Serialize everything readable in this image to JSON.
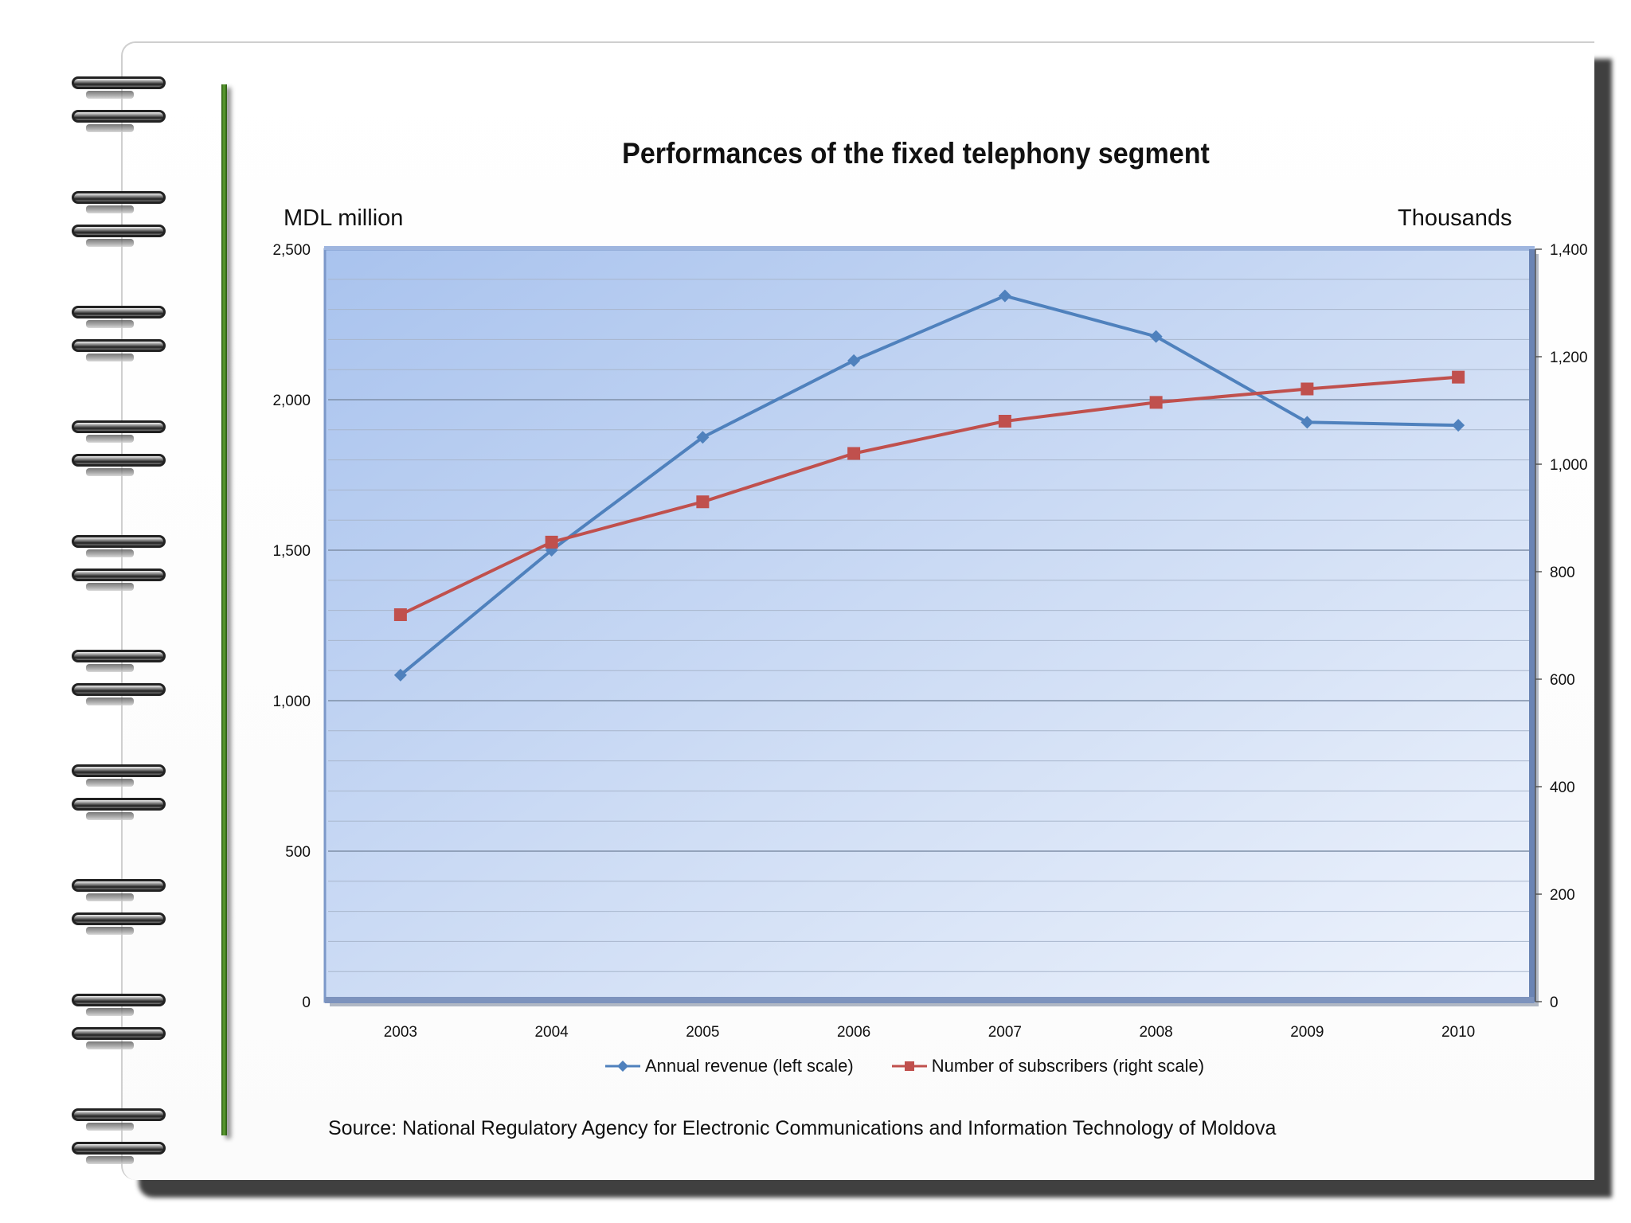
{
  "chart_data": {
    "type": "line",
    "title": "Performances of the fixed telephony segment",
    "left_axis_label": "MDL million",
    "right_axis_label": "Thousands",
    "categories": [
      "2003",
      "2004",
      "2005",
      "2006",
      "2007",
      "2008",
      "2009",
      "2010"
    ],
    "left_ylim": [
      0,
      2500
    ],
    "right_ylim": [
      0,
      1400
    ],
    "left_ticks": [
      0,
      500,
      1000,
      1500,
      2000,
      2500
    ],
    "left_tick_labels": [
      "0",
      "500",
      "1,000",
      "1,500",
      "2,000",
      "2,500"
    ],
    "right_ticks": [
      0,
      200,
      400,
      600,
      800,
      1000,
      1200,
      1400
    ],
    "right_tick_labels": [
      "0",
      "200",
      "400",
      "600",
      "800",
      "1,000",
      "1,200",
      "1,400"
    ],
    "series": [
      {
        "name": "Annual revenue (left scale)",
        "axis": "left",
        "marker": "diamond",
        "color": "#4f81bd",
        "values": [
          1085,
          1500,
          1875,
          2130,
          2345,
          2210,
          1925,
          1915
        ]
      },
      {
        "name": "Number of subscribers (right scale)",
        "axis": "right",
        "marker": "square",
        "color": "#c0504d",
        "values": [
          720,
          855,
          930,
          1020,
          1080,
          1115,
          1140,
          1162
        ]
      }
    ],
    "grid": true,
    "legend_position": "bottom"
  },
  "source_text": "Source: National Regulatory Agency for Electronic Communications and Information Technology of Moldova"
}
